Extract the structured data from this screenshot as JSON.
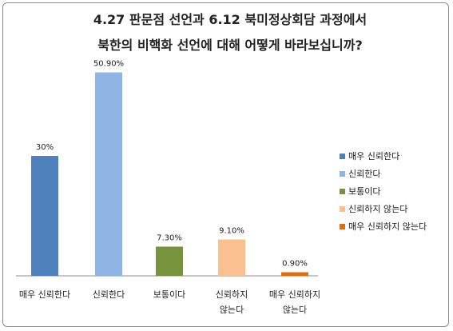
{
  "chart_data": {
    "type": "bar",
    "title": [
      "4.27 판문점 선언과 6.12 북미정상회담 과정에서",
      "북한의 비핵화 선언에 대해 어떻게 바라보십니까?"
    ],
    "categories": [
      [
        "매우 신뢰한다"
      ],
      [
        "신뢰한다"
      ],
      [
        "보통이다"
      ],
      [
        "신뢰하지",
        "않는다"
      ],
      [
        "매우 신뢰하지",
        "않는다"
      ]
    ],
    "values": [
      30,
      50.9,
      7.3,
      9.1,
      0.9
    ],
    "data_labels": [
      "30%",
      "50.90%",
      "7.30%",
      "9.10%",
      "0.90%"
    ],
    "colors": [
      "#4f81bd",
      "#8eb4e3",
      "#77933c",
      "#fac090",
      "#e46c0a"
    ],
    "legend": {
      "position": "right",
      "entries": [
        "매우 신뢰한다",
        "신뢰한다",
        "보통이다",
        "신뢰하지 않는다",
        "매우 신뢰하지 않는다"
      ]
    },
    "ylim": [
      0,
      55
    ],
    "grid": false,
    "xlabel": "",
    "ylabel": ""
  }
}
